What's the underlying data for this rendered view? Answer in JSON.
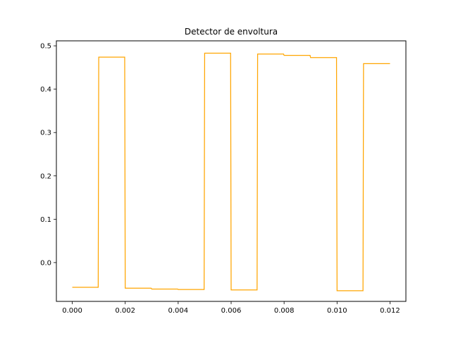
{
  "chart_data": {
    "type": "line",
    "title": "Detector de envoltura",
    "xlabel": "",
    "ylabel": "",
    "xlim": [
      -0.0006,
      0.0126
    ],
    "ylim": [
      -0.0895,
      0.5115
    ],
    "x_ticks": [
      0.0,
      0.002,
      0.004,
      0.006,
      0.008,
      0.01,
      0.012
    ],
    "x_tick_labels": [
      "0.000",
      "0.002",
      "0.004",
      "0.006",
      "0.008",
      "0.010",
      "0.012"
    ],
    "y_ticks": [
      0.0,
      0.1,
      0.2,
      0.3,
      0.4,
      0.5
    ],
    "y_tick_labels": [
      "0.0",
      "0.1",
      "0.2",
      "0.3",
      "0.4",
      "0.5"
    ],
    "grid": false,
    "series": [
      {
        "color": "#ffa500",
        "x": [
          0.0,
          0.00098,
          0.001,
          0.00198,
          0.002,
          0.00298,
          0.003,
          0.00398,
          0.004,
          0.00498,
          0.005,
          0.00598,
          0.006,
          0.00698,
          0.007,
          0.00798,
          0.008,
          0.00898,
          0.009,
          0.00998,
          0.01,
          0.01098,
          0.011,
          0.012
        ],
        "y": [
          -0.057,
          -0.057,
          0.474,
          0.474,
          -0.059,
          -0.059,
          -0.061,
          -0.061,
          -0.062,
          -0.062,
          0.483,
          0.483,
          -0.063,
          -0.063,
          0.481,
          0.481,
          0.478,
          0.478,
          0.473,
          0.473,
          -0.065,
          -0.065,
          0.459,
          0.459
        ]
      }
    ]
  }
}
